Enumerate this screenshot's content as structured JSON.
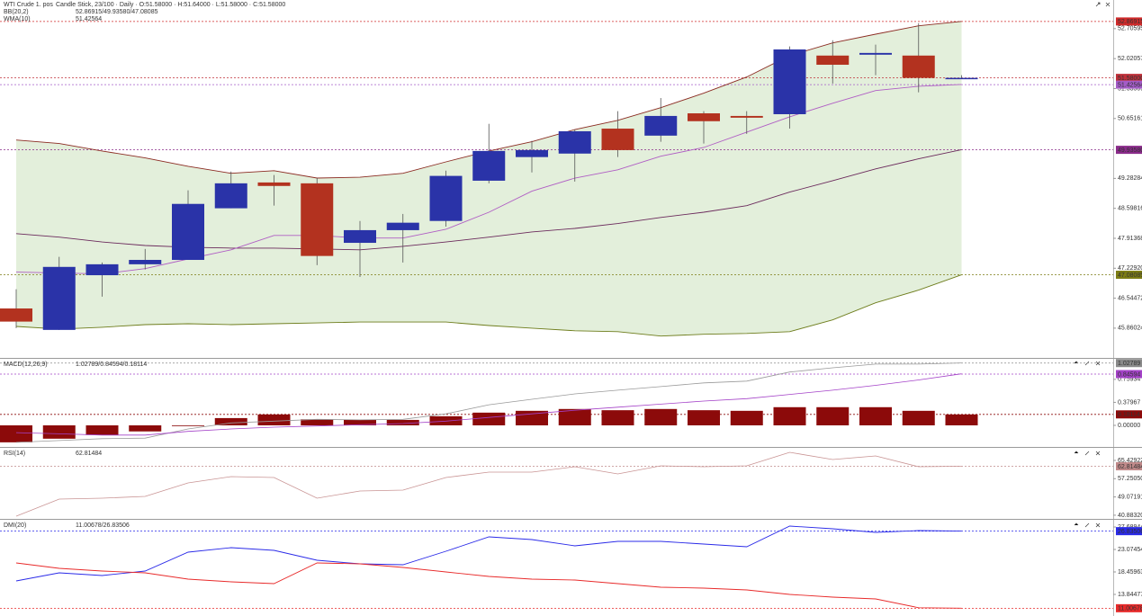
{
  "chart_data": [
    {
      "type": "candlestick",
      "title": "WTI Crude 1. pos",
      "subtitle": "Candle Stick, 23/100 · Daily · O:51.58000 · H:51.64000 · L:51.58000 · C:51.58000",
      "ylim": [
        45.18,
        53.36
      ],
      "yticks": [
        45.86024,
        46.54472,
        {
          "value": 47.2292,
          "label": "47.22920"
        },
        47.91368,
        48.59816,
        49.28284,
        50.65161,
        51.33509,
        52.02057,
        52.70595
      ],
      "up_color": "#2a33a8",
      "down_color": "#b3321f",
      "open": [
        46.31,
        45.82,
        47.07,
        47.32,
        47.42,
        48.6,
        49.19,
        49.17,
        47.81,
        48.1,
        48.31,
        49.23,
        49.77,
        49.85,
        50.42,
        50.26,
        50.77,
        50.71,
        50.75,
        52.09,
        52.11,
        52.09,
        51.58
      ],
      "high": [
        46.75,
        47.49,
        47.36,
        47.67,
        49.01,
        49.44,
        49.36,
        49.29,
        48.31,
        48.47,
        49.46,
        50.53,
        50.14,
        50.4,
        50.82,
        51.12,
        50.82,
        50.82,
        52.3,
        52.44,
        52.34,
        52.83,
        51.64
      ],
      "low": [
        45.86,
        45.82,
        46.58,
        47.2,
        47.42,
        48.6,
        48.66,
        47.3,
        47.03,
        47.36,
        48.18,
        49.17,
        49.42,
        49.21,
        49.77,
        50.12,
        50.08,
        50.3,
        50.42,
        51.45,
        51.64,
        51.25,
        51.58
      ],
      "close": [
        46.01,
        47.26,
        47.32,
        47.42,
        48.7,
        49.17,
        49.11,
        47.51,
        48.1,
        48.27,
        49.34,
        49.91,
        49.93,
        50.36,
        49.93,
        50.71,
        50.59,
        50.67,
        52.23,
        51.88,
        52.15,
        51.58,
        51.58
      ],
      "indicators": [
        {
          "name": "BB(20,2)",
          "readout": "52.86915/49.93580/47.08085",
          "color": "#b0309a",
          "fill": "#e3efdb",
          "lines": [
            {
              "color": "#8b2b22",
              "values": [
                50.16,
                50.08,
                49.91,
                49.75,
                49.56,
                49.4,
                49.46,
                49.29,
                49.31,
                49.4,
                49.66,
                49.91,
                50.12,
                50.4,
                50.61,
                50.9,
                51.23,
                51.6,
                52.09,
                52.38,
                52.58,
                52.77,
                52.87
              ]
            },
            {
              "color": "#6b2a5c",
              "values": [
                48.02,
                47.94,
                47.83,
                47.75,
                47.71,
                47.69,
                47.69,
                47.67,
                47.65,
                47.73,
                47.83,
                47.94,
                48.06,
                48.14,
                48.25,
                48.39,
                48.51,
                48.66,
                48.97,
                49.23,
                49.5,
                49.73,
                49.94
              ]
            },
            {
              "color": "#6e7d1c",
              "values": [
                45.9,
                45.84,
                45.88,
                45.94,
                45.96,
                45.94,
                45.96,
                45.98,
                46.0,
                46.0,
                46.0,
                45.92,
                45.86,
                45.8,
                45.78,
                45.68,
                45.72,
                45.74,
                45.78,
                46.05,
                46.44,
                46.73,
                47.08
              ]
            }
          ]
        },
        {
          "name": "WMA(10)",
          "readout": "51.42564",
          "color": "#b05ec4",
          "lines": [
            {
              "color": "#b05ec4",
              "values": [
                47.14,
                47.12,
                47.1,
                47.22,
                47.44,
                47.65,
                47.98,
                47.98,
                47.92,
                47.92,
                48.12,
                48.51,
                48.99,
                49.29,
                49.48,
                49.79,
                49.99,
                50.34,
                50.69,
                51.0,
                51.29,
                51.39,
                51.43
              ]
            }
          ]
        }
      ],
      "levels": [
        {
          "value": 52.86915,
          "color": "#d02a2a"
        },
        {
          "value": 51.58,
          "label": "51.58000",
          "color": "#c0303a"
        },
        {
          "value": 51.42564,
          "color": "#a45cc8"
        },
        {
          "value": 49.9358,
          "label": "49.93580",
          "color": "#8a2a8a"
        },
        {
          "value": 47.08085,
          "color": "#7c7c14"
        }
      ]
    },
    {
      "type": "macd",
      "title": "MACD(12,26,9)",
      "readout": "1.02789/0.84594/0.18114",
      "ylim": [
        -0.356,
        1.098
      ],
      "yticks": [
        {
          "value": 0,
          "label": "0.00000"
        },
        0.37967,
        0.75934
      ],
      "histogram": {
        "color": "#8c0a0a",
        "values": [
          -0.28,
          -0.22,
          -0.16,
          -0.1,
          -0.01,
          0.12,
          0.18,
          0.1,
          0.09,
          0.09,
          0.15,
          0.21,
          0.24,
          0.27,
          0.25,
          0.27,
          0.25,
          0.24,
          0.3,
          0.3,
          0.3,
          0.24,
          0.18
        ]
      },
      "lines": [
        {
          "color": "#9a9a9a",
          "values": [
            -0.28,
            -0.25,
            -0.22,
            -0.21,
            -0.06,
            0.04,
            0.07,
            0.1,
            0.09,
            0.1,
            0.19,
            0.34,
            0.43,
            0.52,
            0.58,
            0.64,
            0.7,
            0.73,
            0.88,
            0.95,
            1.01,
            1.01,
            1.03
          ]
        },
        {
          "color": "#a442c8",
          "values": [
            -0.12,
            -0.14,
            -0.16,
            -0.16,
            -0.1,
            -0.06,
            -0.03,
            -0.01,
            0.01,
            0.03,
            0.07,
            0.13,
            0.19,
            0.25,
            0.3,
            0.35,
            0.4,
            0.44,
            0.51,
            0.58,
            0.66,
            0.75,
            0.85
          ]
        }
      ],
      "levels": [
        {
          "value": 1.02789,
          "color": "#8a8a8a"
        },
        {
          "value": 0.84594,
          "color": "#a442c8"
        },
        {
          "value": 0.18114,
          "color": "#8c0a0a"
        }
      ]
    },
    {
      "type": "rsi",
      "title": "RSI(14)",
      "readout": "62.81484",
      "ylim": [
        39.24,
        71.07
      ],
      "yticks": [
        {
          "value": 40.8832,
          "label": "40.88320"
        },
        49.07191,
        {
          "value": 57.2505,
          "label": "57.25050"
        },
        65.42922
      ],
      "lines": [
        {
          "color": "#c99494",
          "values": [
            40.45,
            48.1,
            48.5,
            49.31,
            55.36,
            58.18,
            57.77,
            48.5,
            51.73,
            52.13,
            57.77,
            60.19,
            60.19,
            62.61,
            59.39,
            63.01,
            62.61,
            63.01,
            69.06,
            65.83,
            67.44,
            62.61,
            62.81
          ]
        }
      ],
      "levels": [
        {
          "value": 62.81484,
          "color": "#c08a8a"
        }
      ]
    },
    {
      "type": "dmi",
      "title": "DMI(20)",
      "readout": "11.00678/26.83506",
      "ylim": [
        9.41,
        29.17
      ],
      "yticks": [
        13.84477,
        18.45963,
        23.07454,
        27.68944
      ],
      "lines": [
        {
          "color": "#2a2ae8",
          "values": [
            16.61,
            18.27,
            17.72,
            18.64,
            22.52,
            23.44,
            22.89,
            20.86,
            20.12,
            19.94,
            22.71,
            25.66,
            25.1,
            23.81,
            24.74,
            24.74,
            24.18,
            23.63,
            27.87,
            27.32,
            26.58,
            26.95,
            26.84
          ]
        },
        {
          "color": "#e82a2a",
          "values": [
            20.31,
            19.2,
            18.64,
            18.27,
            16.98,
            16.43,
            16.06,
            20.31,
            20.12,
            19.38,
            18.46,
            17.54,
            16.98,
            16.8,
            16.06,
            15.32,
            15.14,
            14.77,
            13.84,
            13.29,
            12.92,
            11.1,
            11.01
          ]
        }
      ],
      "levels": [
        {
          "value": 26.83506,
          "color": "#2a2ae8"
        },
        {
          "value": 11.00678,
          "color": "#e82a2a"
        }
      ]
    }
  ]
}
